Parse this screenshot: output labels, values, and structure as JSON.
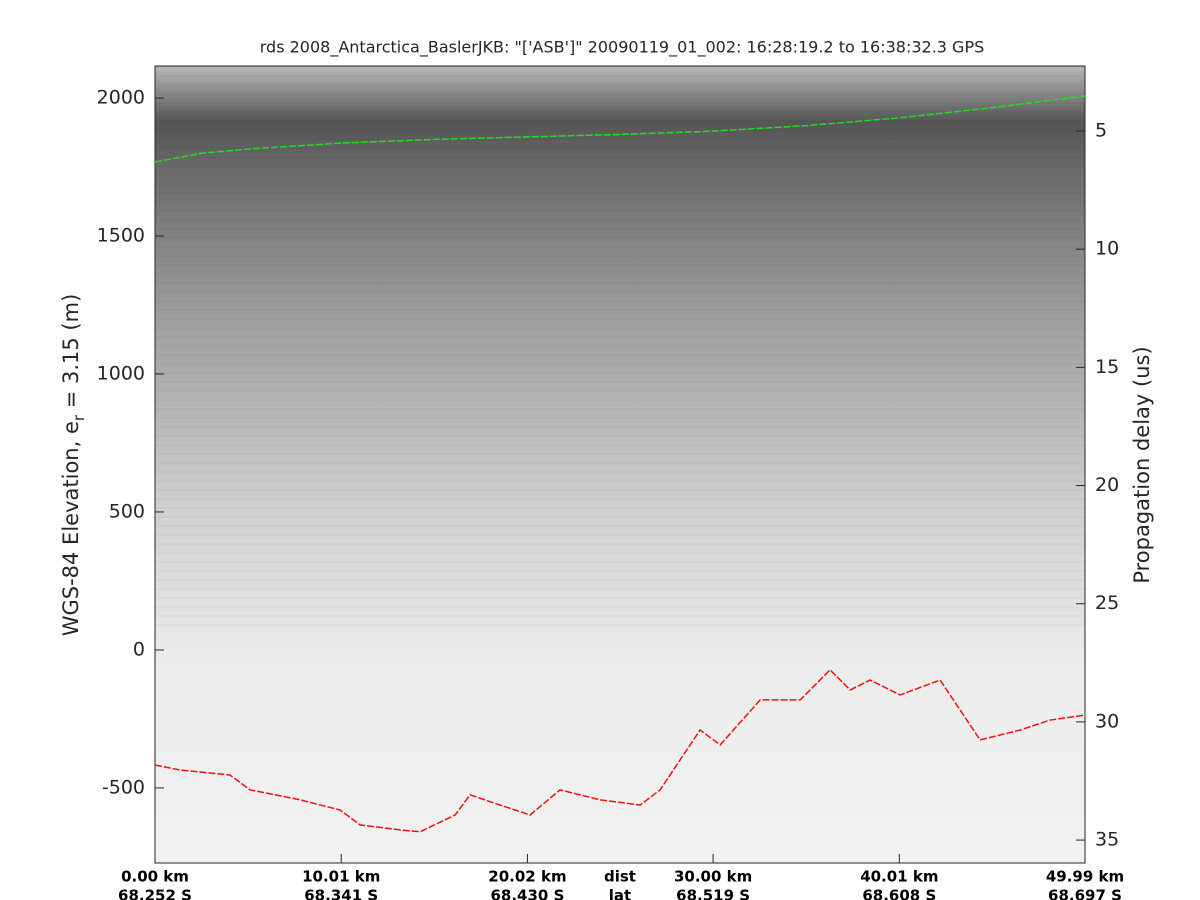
{
  "chart_data": {
    "type": "line",
    "title": "rds 2008_Antarctica_BaslerJKB: \"['ASB']\"  20090119_01_002: 16:28:19.2 to 16:38:32.3 GPS",
    "ylabel": [
      "WGS-84 Elevation, e",
      "r",
      " = 3.15 (m)"
    ],
    "y2label": "Propagation delay (us)",
    "xlabel": "dist",
    "x2label": "lat",
    "xlim": [
      0,
      49.99
    ],
    "xticks": [
      {
        "value": 0,
        "label": "0.00 km"
      },
      {
        "value": 10.01,
        "label": "10.01 km"
      },
      {
        "value": 20.02,
        "label": "20.02 km"
      },
      {
        "value": 30.0,
        "label": "30.00 km"
      },
      {
        "value": 40.01,
        "label": "40.01 km"
      },
      {
        "value": 49.99,
        "label": "49.99 km"
      }
    ],
    "lat_labels": [
      "68.252 S",
      "68.341 S",
      "68.430 S",
      "68.519 S",
      "68.608 S",
      "68.697 S"
    ],
    "ylim": [
      -772,
      2116
    ],
    "yticks": [
      -500,
      0,
      500,
      1000,
      1500,
      2000
    ],
    "y2lim": [
      35.97,
      2.25
    ],
    "y2ticks": [
      5,
      10,
      15,
      20,
      25,
      30,
      35
    ],
    "series": [
      {
        "color": "#22dd22",
        "x": [
          0,
          2.5,
          5,
          10.01,
          15,
          20.02,
          25,
          30.0,
          35,
          40.01,
          45,
          49.99
        ],
        "values": [
          1768,
          1800,
          1815,
          1837,
          1850,
          1859,
          1868,
          1880,
          1900,
          1928,
          1965,
          2007
        ]
      },
      {
        "color": "#ee1111",
        "x": [
          0,
          1.34,
          4.03,
          5.11,
          7.8,
          9.95,
          11.02,
          13.17,
          14.25,
          16.13,
          16.94,
          18.55,
          20.16,
          21.77,
          23.92,
          26.08,
          27.15,
          29.3,
          30.38,
          32.53,
          34.68,
          36.29,
          37.37,
          38.44,
          40.05,
          42.2,
          44.35,
          46.51,
          48.12,
          49.99
        ],
        "values": [
          -417,
          -435,
          -453,
          -507,
          -543,
          -580,
          -634,
          -652,
          -659,
          -598,
          -525,
          -562,
          -598,
          -507,
          -543,
          -562,
          -507,
          -290,
          -344,
          -181,
          -181,
          -72,
          -145,
          -109,
          -163,
          -109,
          -326,
          -290,
          -254,
          -236
        ]
      }
    ]
  }
}
